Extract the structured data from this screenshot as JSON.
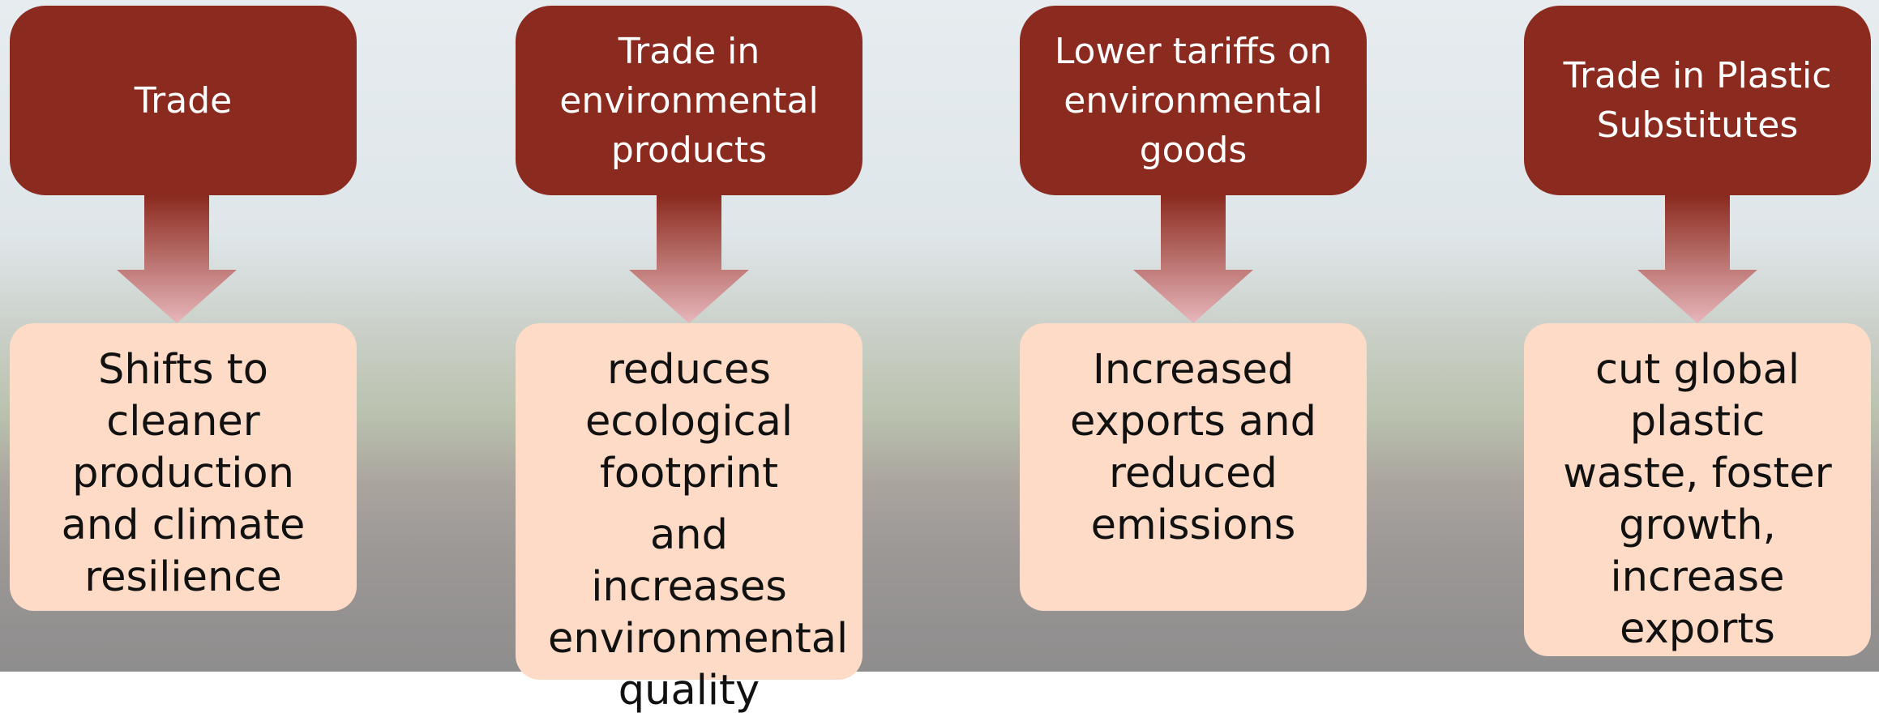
{
  "columns": [
    {
      "source": "Trade",
      "effect": [
        "Shifts to cleaner production and climate resilience"
      ]
    },
    {
      "source": "Trade in environmental products",
      "effect": [
        "reduces ecological footprint",
        "and increases environmental quality"
      ]
    },
    {
      "source": "Lower tariffs on environmental goods",
      "effect": [
        "Increased exports and reduced emissions"
      ]
    },
    {
      "source": "Trade in Plastic Substitutes",
      "effect": [
        "cut global plastic waste, foster growth, increase exports"
      ]
    }
  ]
}
